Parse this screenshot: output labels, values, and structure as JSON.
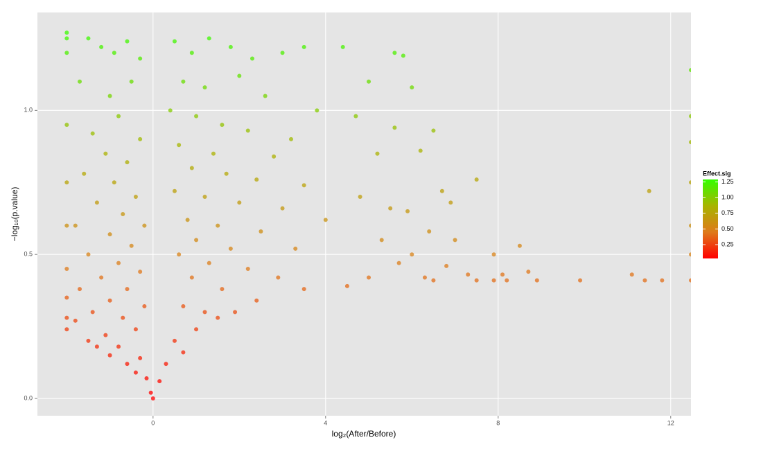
{
  "chart_data": {
    "type": "scatter",
    "x_label": "log₂(After/Before)",
    "y_label": "−log₁₀(p.value)",
    "x": [
      -2,
      -2,
      -2,
      -2,
      -2,
      -2,
      -2,
      -2,
      -2,
      -2,
      -1.5,
      -1.2,
      -0.9,
      -0.6,
      -0.3,
      -1.7,
      -1.0,
      -0.5,
      -0.8,
      -1.4,
      -0.3,
      -1.1,
      -0.6,
      -1.6,
      -0.9,
      -0.4,
      -1.3,
      -0.7,
      -1.8,
      -0.2,
      -1.0,
      -0.5,
      -1.5,
      -0.8,
      -0.3,
      -1.2,
      -1.7,
      -0.6,
      -1.0,
      -0.2,
      -1.4,
      -0.7,
      -1.8,
      -0.4,
      -1.1,
      -0.8,
      -1.5,
      -0.3,
      -0.6,
      -1.0,
      -0.15,
      -0.4,
      -1.3,
      -0.05,
      0.5,
      0.9,
      1.3,
      1.8,
      2.3,
      3.0,
      3.5,
      4.4,
      0.7,
      1.2,
      2.0,
      2.6,
      0.4,
      1.0,
      1.6,
      2.2,
      3.2,
      3.8,
      0.6,
      1.4,
      2.8,
      0.9,
      1.7,
      2.4,
      3.5,
      0.5,
      1.2,
      2.0,
      3.0,
      4.0,
      0.8,
      1.5,
      2.5,
      1.0,
      1.8,
      3.3,
      0.6,
      1.3,
      2.2,
      2.9,
      0.9,
      1.6,
      2.4,
      1.2,
      0.7,
      1.9,
      0.5,
      1.0,
      0.3,
      0.15,
      0.7,
      1.5,
      3.5,
      4.5,
      5.8,
      5.6,
      6.0,
      5.0,
      4.7,
      5.6,
      6.5,
      5.2,
      6.2,
      7.5,
      6.7,
      5.5,
      4.8,
      6.9,
      5.9,
      6.4,
      7.0,
      5.3,
      6.0,
      7.9,
      8.5,
      6.8,
      5.7,
      7.3,
      8.1,
      8.7,
      5.0,
      6.3,
      7.5,
      8.2,
      8.9,
      9.9,
      11.1,
      11.4,
      11.8,
      11.5,
      6.5,
      7.9,
      12.47,
      12.47,
      12.47,
      12.47,
      12.47,
      12.47,
      12.47,
      0
    ],
    "values": [
      1.27,
      1.25,
      1.2,
      0.95,
      0.75,
      0.6,
      0.45,
      0.35,
      0.28,
      0.24,
      1.25,
      1.22,
      1.2,
      1.24,
      1.18,
      1.1,
      1.05,
      1.1,
      0.98,
      0.92,
      0.9,
      0.85,
      0.82,
      0.78,
      0.75,
      0.7,
      0.68,
      0.64,
      0.6,
      0.6,
      0.57,
      0.53,
      0.5,
      0.47,
      0.44,
      0.42,
      0.38,
      0.38,
      0.34,
      0.32,
      0.3,
      0.28,
      0.27,
      0.24,
      0.22,
      0.18,
      0.2,
      0.14,
      0.12,
      0.15,
      0.07,
      0.09,
      0.18,
      0.02,
      1.24,
      1.2,
      1.25,
      1.22,
      1.18,
      1.2,
      1.22,
      1.22,
      1.1,
      1.08,
      1.12,
      1.05,
      1.0,
      0.98,
      0.95,
      0.93,
      0.9,
      1.0,
      0.88,
      0.85,
      0.84,
      0.8,
      0.78,
      0.76,
      0.74,
      0.72,
      0.7,
      0.68,
      0.66,
      0.62,
      0.62,
      0.6,
      0.58,
      0.55,
      0.52,
      0.52,
      0.5,
      0.47,
      0.45,
      0.42,
      0.42,
      0.38,
      0.34,
      0.3,
      0.32,
      0.3,
      0.2,
      0.24,
      0.12,
      0.06,
      0.16,
      0.28,
      0.38,
      0.39,
      1.19,
      1.2,
      1.08,
      1.1,
      0.98,
      0.94,
      0.93,
      0.85,
      0.86,
      0.76,
      0.72,
      0.66,
      0.7,
      0.68,
      0.65,
      0.58,
      0.55,
      0.55,
      0.5,
      0.5,
      0.53,
      0.46,
      0.47,
      0.43,
      0.43,
      0.44,
      0.42,
      0.42,
      0.41,
      0.41,
      0.41,
      0.41,
      0.43,
      0.41,
      0.41,
      0.72,
      0.41,
      0.41,
      1.14,
      0.98,
      0.89,
      0.75,
      0.6,
      0.5,
      0.41,
      0
    ],
    "xlim": [
      -2.68,
      12.47
    ],
    "ylim": [
      -0.06,
      1.34
    ],
    "xticks": [
      0,
      4,
      8,
      12
    ],
    "yticks": [
      {
        "value": 0,
        "label": "0.0"
      },
      {
        "value": 0.5,
        "label": "0.5"
      },
      {
        "value": 1,
        "label": "1.0"
      }
    ],
    "grid": true,
    "colorscale": {
      "title": "Effect.sig",
      "lim": [
        0.03,
        1.29
      ],
      "colors": [
        "#ff0000",
        "#de7a1a",
        "#a8b400",
        "#33ff00"
      ],
      "ticks": [
        {
          "value": 0.25,
          "label": "0.25"
        },
        {
          "value": 0.5,
          "label": "0.50"
        },
        {
          "value": 0.75,
          "label": "0.75"
        },
        {
          "value": 1,
          "label": "1.00"
        },
        {
          "value": 1.25,
          "label": "1.25"
        }
      ]
    }
  }
}
